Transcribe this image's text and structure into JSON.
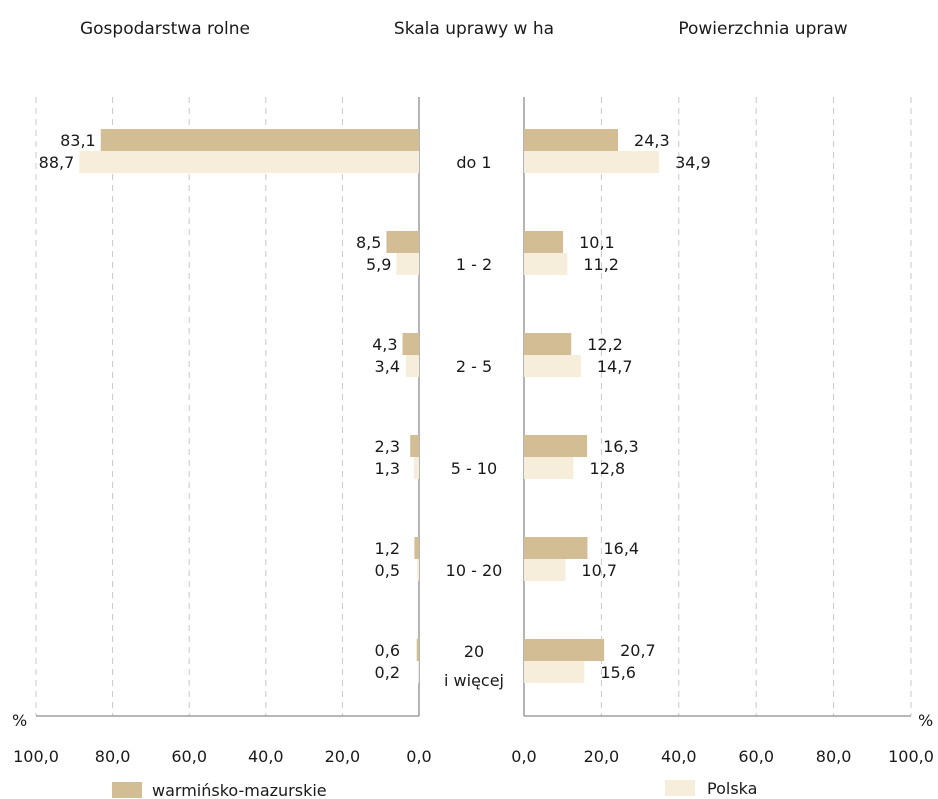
{
  "titles": {
    "left": "Gospodarstwa rolne",
    "center": "Skala uprawy w ha",
    "right": "Powierzchnia upraw"
  },
  "percent_sign": "%",
  "colors": {
    "wm": "#d3bd94",
    "pl": "#f6eedb"
  },
  "legend": {
    "wm": "warmińsko-mazurskie",
    "pl": "Polska"
  },
  "chart_data": [
    {
      "type": "bar",
      "title": "Gospodarstwa rolne",
      "orientation": "horizontal",
      "x_direction": "reversed",
      "xlim": [
        0,
        100
      ],
      "ticks": [
        "100,0",
        "80,0",
        "60,0",
        "40,0",
        "20,0",
        "0,0"
      ],
      "categories": [
        "do 1",
        "1 - 2",
        "2 - 5",
        "5 - 10",
        "10 - 20",
        "20 i więcej"
      ],
      "series": [
        {
          "name": "warmińsko-mazurskie",
          "values": [
            83.1,
            8.5,
            4.3,
            2.3,
            1.2,
            0.6
          ],
          "labels": [
            "83,1",
            "8,5",
            "4,3",
            "2,3",
            "1,2",
            "0,6"
          ]
        },
        {
          "name": "Polska",
          "values": [
            88.7,
            5.9,
            3.4,
            1.3,
            0.5,
            0.2
          ],
          "labels": [
            "88,7",
            "5,9",
            "3,4",
            "1,3",
            "0,5",
            "0,2"
          ]
        }
      ],
      "grid": true
    },
    {
      "type": "bar",
      "title": "Powierzchnia upraw",
      "orientation": "horizontal",
      "xlim": [
        0,
        100
      ],
      "ticks": [
        "0,0",
        "20,0",
        "40,0",
        "60,0",
        "80,0",
        "100,0"
      ],
      "categories": [
        "do 1",
        "1 - 2",
        "2 - 5",
        "5 - 10",
        "10 - 20",
        "20 i więcej"
      ],
      "series": [
        {
          "name": "warmińsko-mazurskie",
          "values": [
            24.3,
            10.1,
            12.2,
            16.3,
            16.4,
            20.7
          ],
          "labels": [
            "24,3",
            "10,1",
            "12,2",
            "16,3",
            "16,4",
            "20,7"
          ]
        },
        {
          "name": "Polska",
          "values": [
            34.9,
            11.2,
            14.7,
            12.8,
            10.7,
            15.6
          ],
          "labels": [
            "34,9",
            "11,2",
            "14,7",
            "12,8",
            "10,7",
            "15,6"
          ]
        }
      ],
      "grid": true
    }
  ],
  "category_lines": [
    [
      "do 1"
    ],
    [
      "1 - 2"
    ],
    [
      "2 - 5"
    ],
    [
      "5 - 10"
    ],
    [
      "10 - 20"
    ],
    [
      "20",
      "i więcej"
    ]
  ]
}
